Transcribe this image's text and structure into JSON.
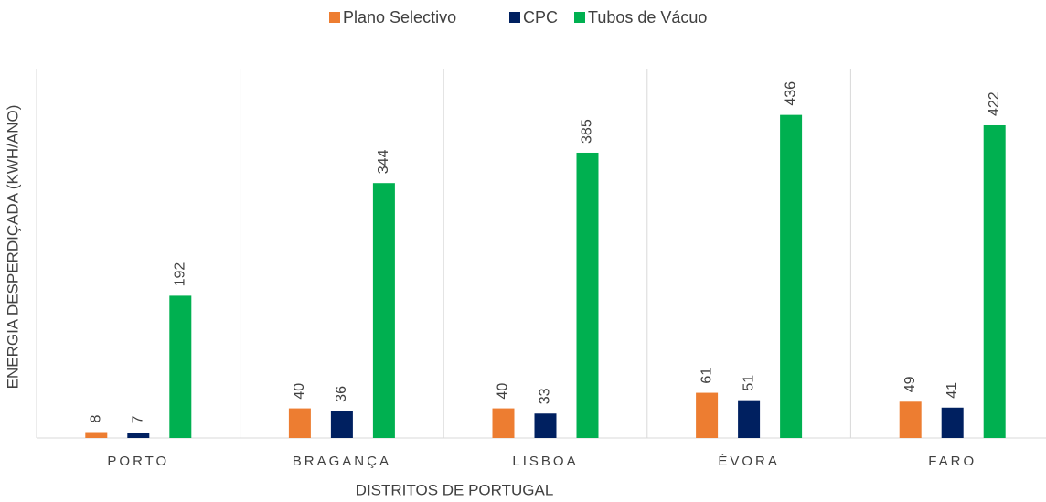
{
  "chart_data": {
    "type": "bar",
    "x_label": "DISTRITOS DE PORTUGAL",
    "y_label": "ENERGIA DESPERDIÇADA (KWH/ANO)",
    "categories": [
      "PORTO",
      "BRAGANÇA",
      "LISBOA",
      "ÉVORA",
      "FARO"
    ],
    "series": [
      {
        "name": "Plano Selectivo",
        "color": "#ED7D31",
        "values": [
          8,
          40,
          40,
          61,
          49
        ]
      },
      {
        "name": "CPC",
        "color": "#002060",
        "values": [
          7,
          36,
          33,
          51,
          41
        ]
      },
      {
        "name": "Tubos de Vácuo",
        "color": "#00B050",
        "values": [
          192,
          344,
          385,
          436,
          422
        ]
      }
    ],
    "ylim": [
      0,
      517
    ],
    "legend": "top"
  }
}
